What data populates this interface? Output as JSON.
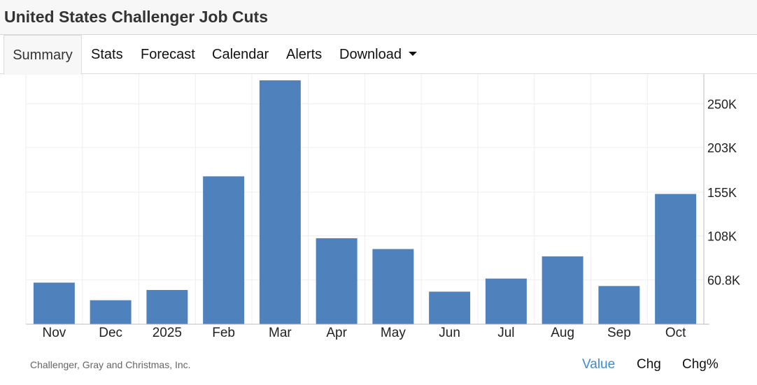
{
  "page": {
    "title": "United States Challenger Job Cuts"
  },
  "tabs": [
    {
      "label": "Summary",
      "active": true
    },
    {
      "label": "Stats"
    },
    {
      "label": "Forecast"
    },
    {
      "label": "Calendar"
    },
    {
      "label": "Alerts"
    },
    {
      "label": "Download",
      "has_dropdown": true
    }
  ],
  "chart_data": {
    "type": "bar",
    "categories": [
      "Nov",
      "Dec",
      "2025",
      "Feb",
      "Mar",
      "Apr",
      "May",
      "Jun",
      "Jul",
      "Aug",
      "Sep",
      "Oct"
    ],
    "values": [
      57727,
      38792,
      49795,
      172017,
      275240,
      105441,
      93816,
      47999,
      62075,
      85979,
      54064,
      153074
    ],
    "y_ticks": [
      60800,
      108000,
      155000,
      203000,
      250000
    ],
    "y_tick_labels": [
      "60.8K",
      "108K",
      "155K",
      "203K",
      "250K"
    ],
    "ylim": [
      13000,
      282000
    ],
    "y_axis_position": "right",
    "grid": true,
    "bar_color": "#4f81bd"
  },
  "footer": {
    "source": "Challenger, Gray and Christmas, Inc.",
    "modes": [
      {
        "label": "Value",
        "active": true
      },
      {
        "label": "Chg"
      },
      {
        "label": "Chg%"
      }
    ]
  }
}
